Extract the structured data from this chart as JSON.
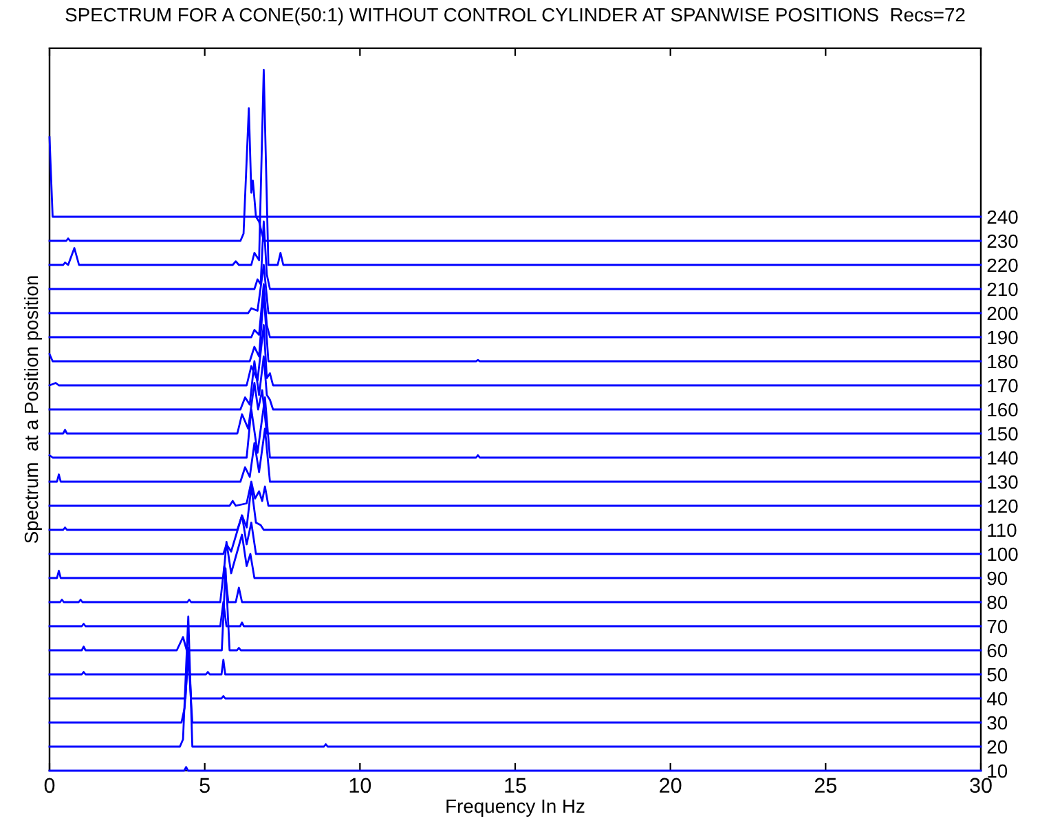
{
  "chart_data": {
    "type": "line",
    "title": "SPECTRUM FOR A CONE(50:1) WITHOUT CONTROL CYLINDER AT SPANWISE POSITIONS  Recs=72",
    "xlabel": "Frequency In Hz",
    "ylabel": "Spectrum  at a Position position",
    "xlim": [
      0,
      30
    ],
    "xticks": [
      0,
      5,
      10,
      15,
      20,
      25,
      30
    ],
    "y2lim": [
      10,
      310
    ],
    "y2ticks": [
      10,
      20,
      30,
      40,
      50,
      60,
      70,
      80,
      90,
      100,
      110,
      120,
      130,
      140,
      150,
      160,
      170,
      180,
      190,
      200,
      210,
      220,
      230,
      240
    ],
    "grid": false,
    "legend": false,
    "series": [
      {
        "color": "#0000ff",
        "axis": "y2",
        "x": [
          0,
          4.34,
          4.4,
          4.46,
          30
        ],
        "values": [
          10,
          10,
          11.5,
          10,
          10
        ]
      },
      {
        "color": "#0000ff",
        "axis": "y2",
        "x": [
          0,
          4.2,
          4.3,
          4.47,
          4.6,
          8.84,
          8.9,
          8.96,
          30
        ],
        "values": [
          20,
          20,
          23,
          74,
          20,
          20,
          21,
          20,
          20
        ]
      },
      {
        "color": "#0000ff",
        "axis": "y2",
        "x": [
          0,
          4.25,
          4.35,
          4.47,
          4.6,
          30
        ],
        "values": [
          30,
          30,
          36,
          58,
          30,
          30
        ]
      },
      {
        "color": "#0000ff",
        "axis": "y2",
        "x": [
          0,
          4.38,
          4.47,
          4.56,
          5.54,
          5.6,
          5.66,
          30
        ],
        "values": [
          40,
          40,
          61,
          40,
          40,
          41,
          40,
          40
        ]
      },
      {
        "color": "#0000ff",
        "axis": "y2",
        "x": [
          0,
          1.04,
          1.1,
          1.16,
          5.04,
          5.1,
          5.16,
          5.54,
          5.6,
          5.66,
          30
        ],
        "values": [
          50,
          50,
          51,
          50,
          50,
          51,
          50,
          50,
          56,
          50,
          50
        ]
      },
      {
        "color": "#0000ff",
        "axis": "y2",
        "x": [
          0,
          1.04,
          1.1,
          1.16,
          4.1,
          4.3,
          4.42,
          5.55,
          5.67,
          5.8,
          6.04,
          6.1,
          6.16,
          30
        ],
        "values": [
          60,
          60,
          61.5,
          60,
          60,
          65.5,
          60,
          60,
          94,
          60,
          60,
          61,
          60,
          60
        ]
      },
      {
        "color": "#0000ff",
        "axis": "y2",
        "x": [
          0,
          1.04,
          1.1,
          1.16,
          5.5,
          5.6,
          5.7,
          6.14,
          6.2,
          6.26,
          30
        ],
        "values": [
          70,
          70,
          71,
          70,
          70,
          80,
          70,
          70,
          71.5,
          70,
          70
        ]
      },
      {
        "color": "#0000ff",
        "axis": "y2",
        "x": [
          0,
          0.34,
          0.4,
          0.46,
          0.94,
          1.0,
          1.06,
          4.44,
          4.5,
          4.56,
          5.5,
          5.63,
          5.76,
          6.0,
          6.1,
          6.2,
          30
        ],
        "values": [
          80,
          80,
          81,
          80,
          80,
          81,
          80,
          80,
          81,
          80,
          80,
          95,
          80,
          80,
          86,
          80,
          80
        ]
      },
      {
        "color": "#0000ff",
        "axis": "y2",
        "x": [
          0,
          0.24,
          0.3,
          0.36,
          5.6,
          5.7,
          5.85,
          6.2,
          6.35,
          6.47,
          6.6,
          30
        ],
        "values": [
          90,
          90,
          93,
          90,
          90,
          105,
          92,
          108,
          95,
          100,
          90,
          90
        ]
      },
      {
        "color": "#0000ff",
        "axis": "y2",
        "x": [
          0,
          5.6,
          5.7,
          5.85,
          6.2,
          6.35,
          6.5,
          6.65,
          30
        ],
        "values": [
          100,
          100,
          104,
          101,
          116,
          104,
          113,
          100,
          100
        ]
      },
      {
        "color": "#0000ff",
        "axis": "y2",
        "x": [
          0,
          0.44,
          0.5,
          0.56,
          6.05,
          6.2,
          6.35,
          6.5,
          6.65,
          6.8,
          6.9,
          30
        ],
        "values": [
          110,
          110,
          111,
          110,
          110,
          116,
          111,
          128,
          113,
          112,
          110,
          110
        ]
      },
      {
        "color": "#0000ff",
        "axis": "y2",
        "x": [
          0,
          5.8,
          5.9,
          6.0,
          6.35,
          6.5,
          6.62,
          6.75,
          6.85,
          6.94,
          7.05,
          30
        ],
        "values": [
          120,
          120,
          122,
          120,
          121,
          130,
          123,
          126,
          122,
          128,
          120,
          120
        ]
      },
      {
        "color": "#0000ff",
        "axis": "y2",
        "x": [
          0,
          0.24,
          0.3,
          0.36,
          6.15,
          6.3,
          6.45,
          6.6,
          6.75,
          6.94,
          7.1,
          30
        ],
        "values": [
          130,
          130,
          133,
          130,
          130,
          136,
          132,
          146,
          134,
          152,
          130,
          130
        ]
      },
      {
        "color": "#0000ff",
        "axis": "y2",
        "x": [
          0,
          0.1,
          0.2,
          6.35,
          6.5,
          6.7,
          6.94,
          7.1,
          13.74,
          13.8,
          13.86,
          30
        ],
        "values": [
          141,
          140,
          140,
          140,
          160,
          142,
          165,
          140,
          140,
          141,
          140,
          140
        ]
      },
      {
        "color": "#0000ff",
        "axis": "y2",
        "x": [
          0,
          0.44,
          0.5,
          0.56,
          6.05,
          6.2,
          6.4,
          6.6,
          6.72,
          6.85,
          7.0,
          30
        ],
        "values": [
          150,
          150,
          151.5,
          150,
          150,
          158,
          152,
          171,
          160,
          168,
          150,
          150
        ]
      },
      {
        "color": "#0000ff",
        "axis": "y2",
        "x": [
          0,
          6.15,
          6.3,
          6.45,
          6.6,
          6.75,
          6.9,
          7.0,
          7.1,
          7.2,
          30
        ],
        "values": [
          160,
          160,
          165,
          162,
          180,
          166,
          182,
          166,
          164,
          160,
          160
        ]
      },
      {
        "color": "#0000ff",
        "axis": "y2",
        "x": [
          0,
          0.2,
          0.3,
          6.35,
          6.5,
          6.7,
          6.9,
          7.0,
          7.1,
          7.2,
          30
        ],
        "values": [
          170,
          171,
          170,
          170,
          178,
          172,
          195,
          173,
          175,
          170,
          170
        ]
      },
      {
        "color": "#0000ff",
        "axis": "y2",
        "x": [
          0,
          0.1,
          6.45,
          6.6,
          6.75,
          6.9,
          7.05,
          13.74,
          13.8,
          13.86,
          30
        ],
        "values": [
          183,
          180,
          180,
          186,
          182,
          208,
          180,
          180,
          180.5,
          180,
          180
        ]
      },
      {
        "color": "#0000ff",
        "axis": "y2",
        "x": [
          0,
          6.5,
          6.6,
          6.75,
          6.9,
          7.0,
          7.1,
          30
        ],
        "values": [
          190,
          190,
          193,
          191,
          212,
          195,
          190,
          190
        ]
      },
      {
        "color": "#0000ff",
        "axis": "y2",
        "x": [
          0,
          6.4,
          6.5,
          6.7,
          6.9,
          7.05,
          30
        ],
        "values": [
          200,
          200,
          202,
          201,
          220,
          200,
          200
        ]
      },
      {
        "color": "#0000ff",
        "axis": "y2",
        "x": [
          0,
          6.6,
          6.7,
          6.8,
          6.9,
          7.0,
          7.1,
          30
        ],
        "values": [
          210,
          210,
          214,
          212,
          238,
          216,
          210,
          210
        ]
      },
      {
        "color": "#0000ff",
        "axis": "y2",
        "x": [
          0,
          0.44,
          0.5,
          0.6,
          0.8,
          0.95,
          5.9,
          6.0,
          6.1,
          6.5,
          6.6,
          6.75,
          6.9,
          7.05,
          7.35,
          7.44,
          7.53,
          30
        ],
        "values": [
          220,
          220,
          221,
          220,
          227,
          220,
          220,
          221.5,
          220,
          220,
          225,
          222,
          301,
          220,
          220,
          225,
          220,
          220
        ]
      },
      {
        "color": "#0000ff",
        "axis": "y2",
        "x": [
          0,
          0.54,
          0.6,
          0.66,
          6.15,
          6.25,
          6.42,
          6.5,
          6.55,
          6.65,
          6.75,
          6.9,
          30
        ],
        "values": [
          230,
          230,
          231,
          230,
          230,
          233,
          285,
          250,
          255,
          240,
          238,
          230,
          230
        ]
      },
      {
        "color": "#0000ff",
        "axis": "y2",
        "x": [
          0,
          0.1,
          30
        ],
        "values": [
          273,
          240,
          240
        ]
      }
    ]
  }
}
